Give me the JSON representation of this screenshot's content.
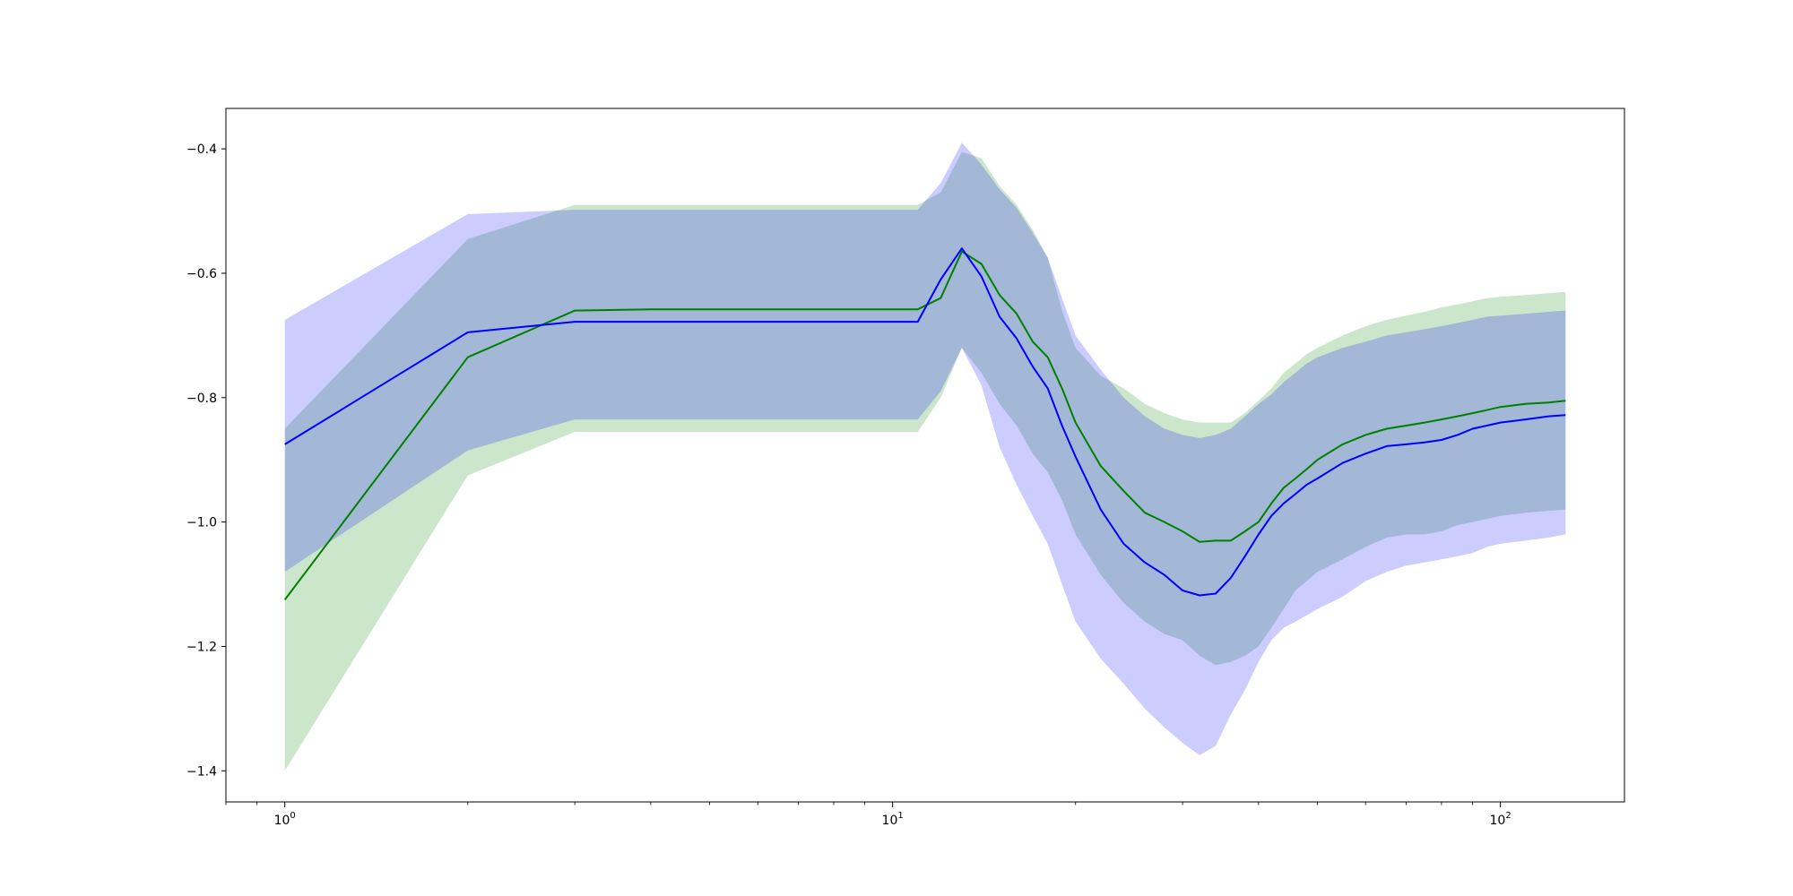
{
  "chart_data": {
    "type": "line",
    "title": "",
    "xlabel": "",
    "ylabel": "",
    "x_scale": "log",
    "xlim": [
      0.8,
      160
    ],
    "ylim": [
      -1.45,
      -0.335
    ],
    "grid": false,
    "legend": "none",
    "x_ticks": [
      {
        "value": 1,
        "base": "10",
        "exp": "0"
      },
      {
        "value": 10,
        "base": "10",
        "exp": "1"
      },
      {
        "value": 100,
        "base": "10",
        "exp": "2"
      }
    ],
    "y_ticks": [
      {
        "value": -0.4,
        "label": "−0.4"
      },
      {
        "value": -0.6,
        "label": "−0.6"
      },
      {
        "value": -0.8,
        "label": "−0.8"
      },
      {
        "value": -1.0,
        "label": "−1.0"
      },
      {
        "value": -1.2,
        "label": "−1.2"
      },
      {
        "value": -1.4,
        "label": "−1.4"
      }
    ],
    "series": [
      {
        "color": "#008000",
        "band_color": "#008000",
        "x": [
          1,
          2,
          3,
          4,
          5,
          6,
          7,
          8,
          9,
          10,
          11,
          12,
          13,
          14,
          15,
          16,
          17,
          18,
          19,
          20,
          22,
          24,
          26,
          28,
          30,
          32,
          34,
          36,
          38,
          40,
          42,
          44,
          46,
          48,
          50,
          55,
          60,
          65,
          70,
          75,
          80,
          85,
          90,
          95,
          100,
          110,
          120,
          128
        ],
        "mean": [
          -1.125,
          -0.735,
          -0.66,
          -0.658,
          -0.658,
          -0.658,
          -0.658,
          -0.658,
          -0.658,
          -0.658,
          -0.658,
          -0.64,
          -0.565,
          -0.585,
          -0.635,
          -0.665,
          -0.71,
          -0.735,
          -0.785,
          -0.84,
          -0.91,
          -0.95,
          -0.985,
          -1.0,
          -1.015,
          -1.032,
          -1.03,
          -1.03,
          -1.015,
          -1.0,
          -0.97,
          -0.945,
          -0.93,
          -0.915,
          -0.9,
          -0.875,
          -0.86,
          -0.85,
          -0.845,
          -0.84,
          -0.835,
          -0.83,
          -0.825,
          -0.82,
          -0.815,
          -0.81,
          -0.808,
          -0.805
        ],
        "lower": [
          -1.4,
          -0.925,
          -0.855,
          -0.855,
          -0.855,
          -0.855,
          -0.855,
          -0.855,
          -0.855,
          -0.855,
          -0.855,
          -0.8,
          -0.72,
          -0.76,
          -0.81,
          -0.845,
          -0.89,
          -0.92,
          -0.965,
          -1.02,
          -1.085,
          -1.13,
          -1.16,
          -1.18,
          -1.19,
          -1.215,
          -1.23,
          -1.225,
          -1.215,
          -1.2,
          -1.17,
          -1.14,
          -1.11,
          -1.095,
          -1.08,
          -1.06,
          -1.04,
          -1.025,
          -1.02,
          -1.02,
          -1.015,
          -1.005,
          -1.0,
          -0.995,
          -0.99,
          -0.985,
          -0.982,
          -0.98
        ],
        "upper": [
          -0.85,
          -0.545,
          -0.49,
          -0.49,
          -0.49,
          -0.49,
          -0.49,
          -0.49,
          -0.49,
          -0.49,
          -0.49,
          -0.47,
          -0.405,
          -0.415,
          -0.46,
          -0.49,
          -0.53,
          -0.575,
          -0.66,
          -0.72,
          -0.765,
          -0.785,
          -0.81,
          -0.825,
          -0.835,
          -0.84,
          -0.84,
          -0.84,
          -0.825,
          -0.805,
          -0.785,
          -0.76,
          -0.745,
          -0.73,
          -0.72,
          -0.7,
          -0.685,
          -0.675,
          -0.668,
          -0.662,
          -0.655,
          -0.65,
          -0.645,
          -0.64,
          -0.638,
          -0.635,
          -0.632,
          -0.63
        ]
      },
      {
        "color": "#0000ff",
        "band_color": "#0000ff",
        "x": [
          1,
          2,
          3,
          4,
          5,
          6,
          7,
          8,
          9,
          10,
          11,
          12,
          13,
          14,
          15,
          16,
          17,
          18,
          19,
          20,
          22,
          24,
          26,
          28,
          30,
          32,
          34,
          36,
          38,
          40,
          42,
          44,
          46,
          48,
          50,
          55,
          60,
          65,
          70,
          75,
          80,
          85,
          90,
          95,
          100,
          110,
          120,
          128
        ],
        "mean": [
          -0.875,
          -0.695,
          -0.678,
          -0.678,
          -0.678,
          -0.678,
          -0.678,
          -0.678,
          -0.678,
          -0.678,
          -0.678,
          -0.61,
          -0.56,
          -0.605,
          -0.67,
          -0.705,
          -0.75,
          -0.785,
          -0.845,
          -0.895,
          -0.98,
          -1.035,
          -1.065,
          -1.085,
          -1.11,
          -1.118,
          -1.115,
          -1.09,
          -1.055,
          -1.02,
          -0.99,
          -0.97,
          -0.955,
          -0.94,
          -0.93,
          -0.905,
          -0.89,
          -0.878,
          -0.875,
          -0.872,
          -0.868,
          -0.86,
          -0.85,
          -0.845,
          -0.84,
          -0.835,
          -0.83,
          -0.828
        ],
        "lower": [
          -1.08,
          -0.885,
          -0.835,
          -0.835,
          -0.835,
          -0.835,
          -0.835,
          -0.835,
          -0.835,
          -0.835,
          -0.835,
          -0.79,
          -0.72,
          -0.78,
          -0.88,
          -0.94,
          -0.99,
          -1.035,
          -1.1,
          -1.16,
          -1.22,
          -1.26,
          -1.3,
          -1.33,
          -1.355,
          -1.375,
          -1.36,
          -1.31,
          -1.27,
          -1.225,
          -1.19,
          -1.17,
          -1.16,
          -1.15,
          -1.14,
          -1.12,
          -1.095,
          -1.08,
          -1.07,
          -1.065,
          -1.06,
          -1.055,
          -1.05,
          -1.04,
          -1.035,
          -1.03,
          -1.025,
          -1.02
        ],
        "upper": [
          -0.675,
          -0.505,
          -0.498,
          -0.498,
          -0.498,
          -0.498,
          -0.498,
          -0.498,
          -0.498,
          -0.498,
          -0.498,
          -0.455,
          -0.39,
          -0.425,
          -0.465,
          -0.495,
          -0.535,
          -0.575,
          -0.64,
          -0.7,
          -0.755,
          -0.8,
          -0.83,
          -0.85,
          -0.86,
          -0.865,
          -0.86,
          -0.85,
          -0.83,
          -0.81,
          -0.795,
          -0.775,
          -0.76,
          -0.745,
          -0.735,
          -0.72,
          -0.71,
          -0.7,
          -0.695,
          -0.69,
          -0.685,
          -0.68,
          -0.675,
          -0.67,
          -0.668,
          -0.665,
          -0.662,
          -0.66
        ]
      }
    ]
  }
}
